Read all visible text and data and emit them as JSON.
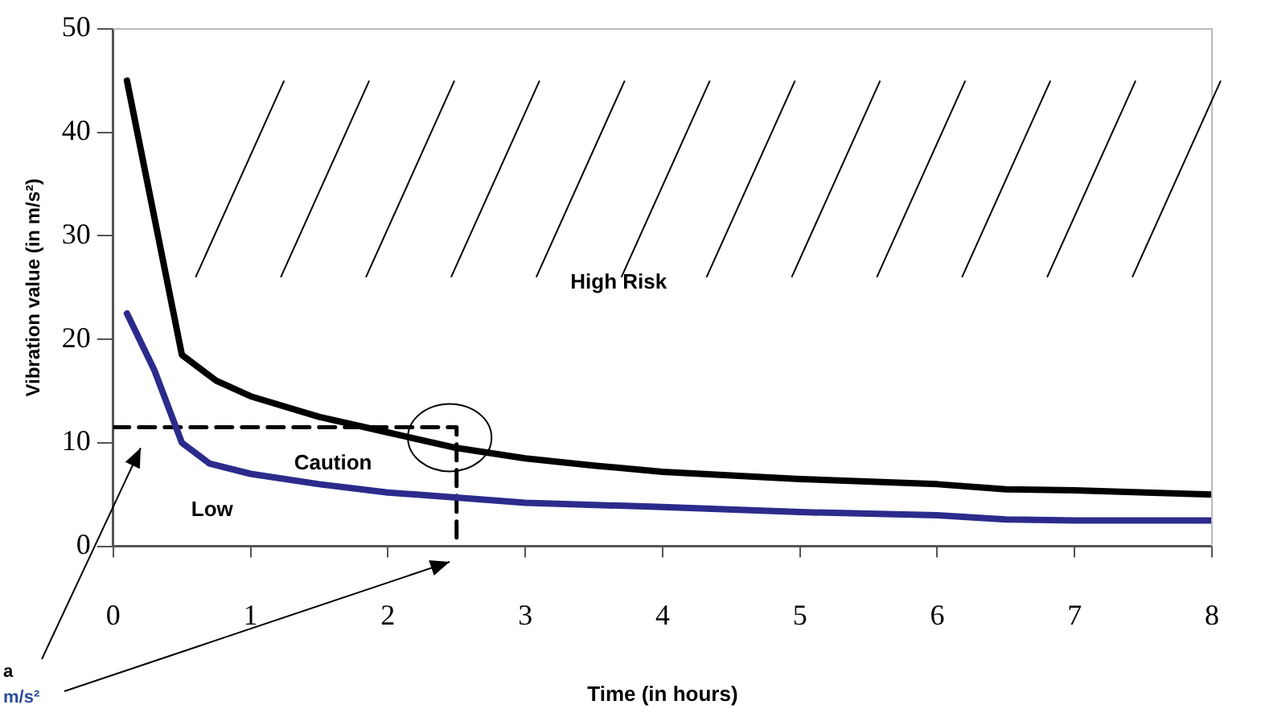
{
  "chart_data": {
    "type": "line",
    "xlabel": "Time (in hours)",
    "ylabel": "Vibration value (in m/s²)",
    "xlim": [
      0,
      8
    ],
    "xticks": [
      0,
      1,
      2,
      3,
      4,
      5,
      6,
      7,
      8
    ],
    "ylim": [
      0,
      50
    ],
    "yticks": [
      0,
      10,
      20,
      30,
      40,
      50
    ],
    "grid": false,
    "legend": false,
    "marker": "none",
    "series": [
      {
        "color": "#000000",
        "x": [
          0.1,
          0.5,
          0.75,
          1,
          1.5,
          2,
          2.5,
          3,
          3.5,
          4,
          5,
          6,
          6.5,
          7,
          8
        ],
        "values": [
          45,
          18.5,
          16,
          14.5,
          12.5,
          11,
          9.5,
          8.5,
          7.8,
          7.2,
          6.5,
          6,
          5.5,
          5.4,
          5
        ]
      },
      {
        "color": "#2b2b8c",
        "x": [
          0.1,
          0.3,
          0.5,
          0.7,
          1,
          1.5,
          2,
          2.5,
          3,
          4,
          5,
          6,
          6.5,
          7,
          8
        ],
        "values": [
          22.5,
          17,
          10,
          8,
          7,
          6,
          5.2,
          4.7,
          4.2,
          3.8,
          3.3,
          3,
          2.6,
          2.5,
          2.5
        ]
      },
      {
        "color": "#000000",
        "line_style": "dashed",
        "x": [
          0,
          2.5,
          2.5
        ],
        "values": [
          11.5,
          11.5,
          0
        ]
      }
    ],
    "annotations": [
      "High Risk",
      "Caution",
      "Low",
      "a",
      "m/s²"
    ]
  }
}
